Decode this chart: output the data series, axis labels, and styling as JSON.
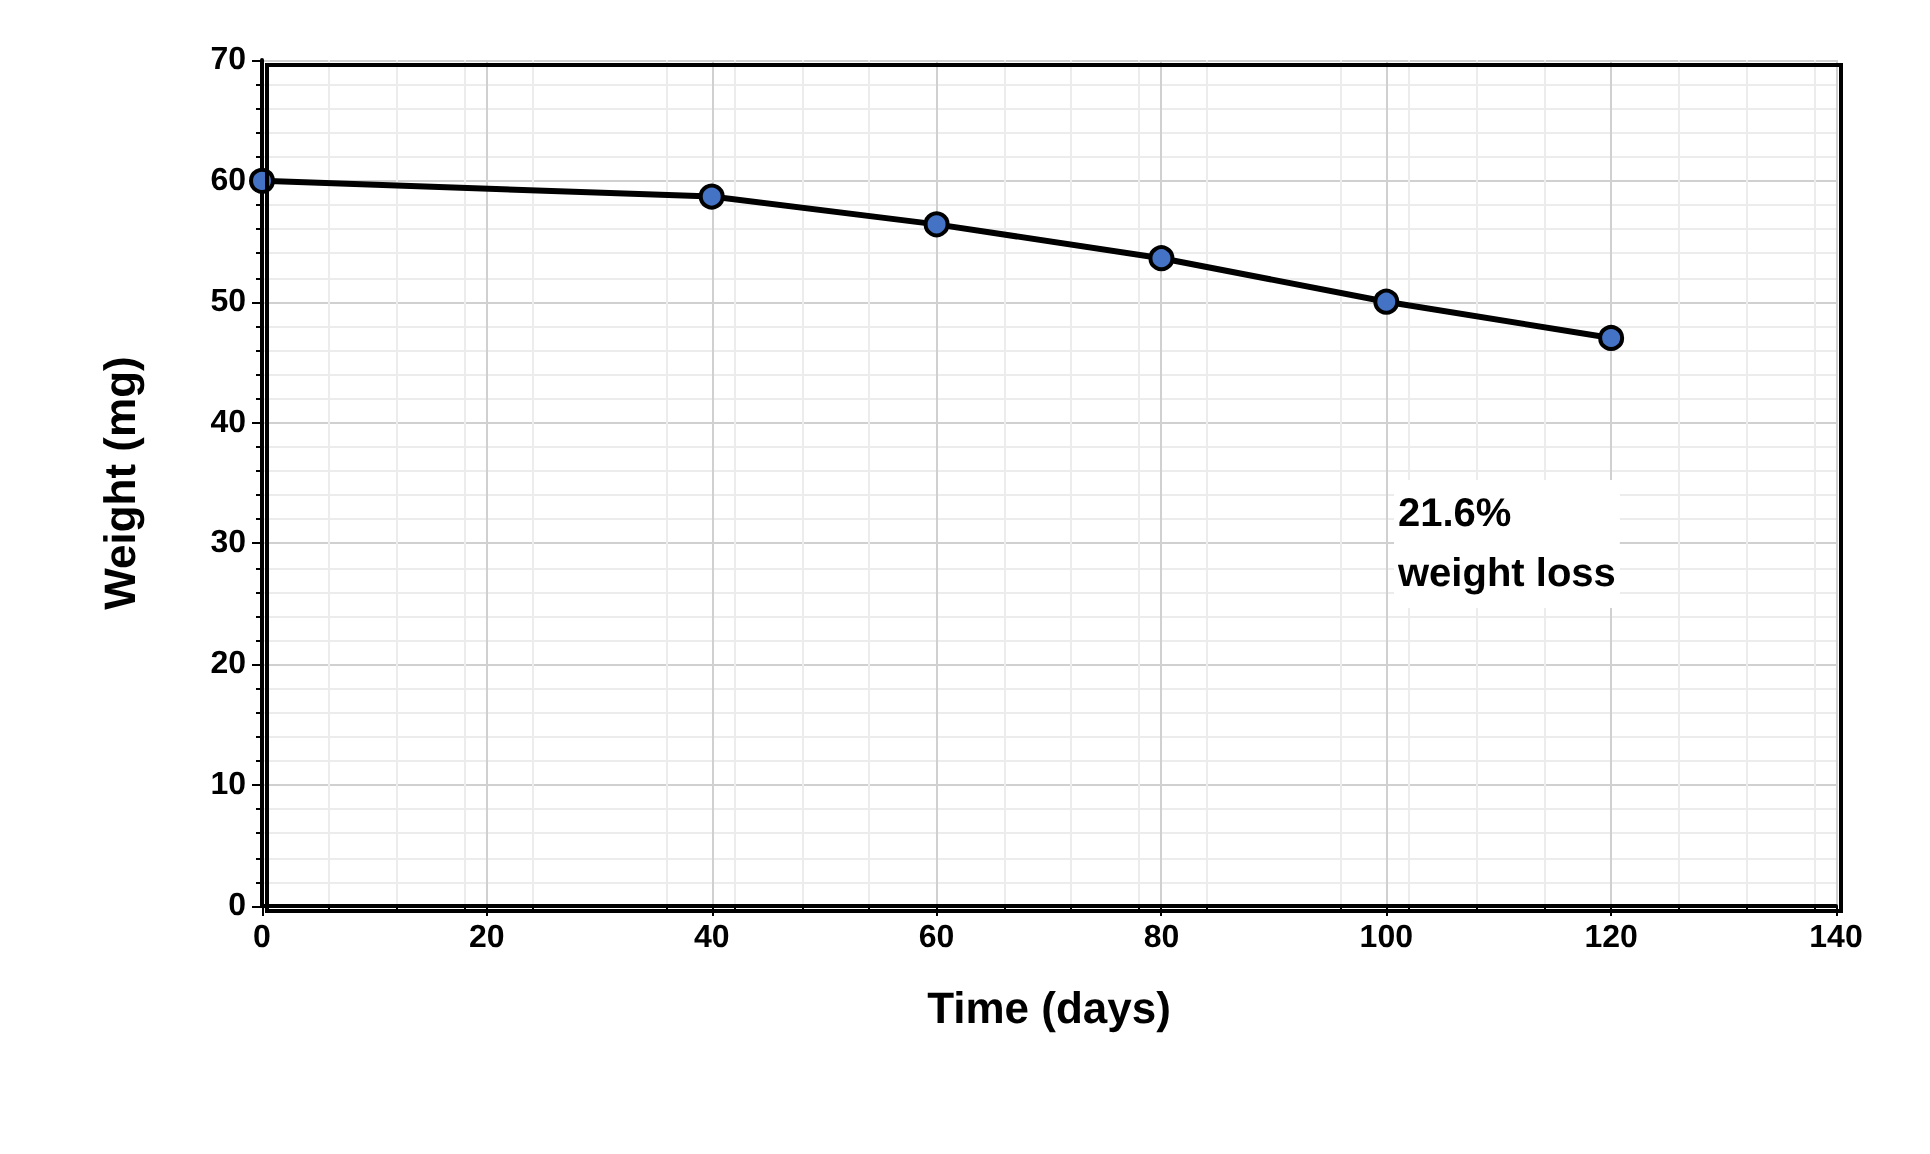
{
  "chart_data": {
    "type": "line",
    "xlabel": "Time (days)",
    "ylabel": "Weight (mg)",
    "x": [
      0,
      40,
      60,
      80,
      100,
      120
    ],
    "series": [
      {
        "color": "#000000",
        "values": [
          60,
          58.7,
          56.4,
          53.6,
          50,
          47
        ]
      }
    ],
    "xlim": [
      0,
      140
    ],
    "xticks": [
      0,
      20,
      40,
      60,
      80,
      100,
      120,
      140
    ],
    "ylim": [
      0,
      70
    ],
    "yticks": [
      0,
      10,
      20,
      30,
      40,
      50,
      60,
      70
    ],
    "grid": true,
    "marker": "circle",
    "line_style": "solid",
    "annotations": [
      "21.6%\nweight loss"
    ]
  }
}
